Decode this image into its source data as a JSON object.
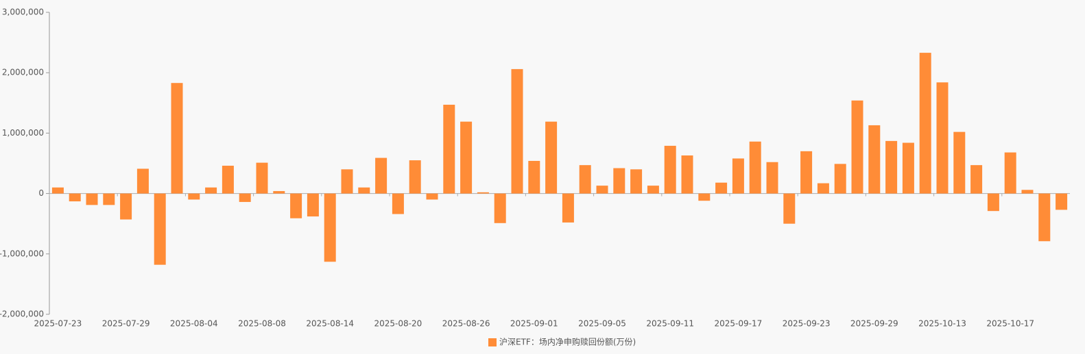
{
  "chart_data": {
    "type": "bar",
    "categories": [
      "2025-07-23",
      null,
      null,
      null,
      "2025-07-29",
      null,
      null,
      null,
      "2025-08-04",
      null,
      null,
      null,
      "2025-08-08",
      null,
      null,
      null,
      "2025-08-14",
      null,
      null,
      null,
      "2025-08-20",
      null,
      null,
      null,
      "2025-08-26",
      null,
      null,
      null,
      "2025-09-01",
      null,
      null,
      null,
      "2025-09-05",
      null,
      null,
      null,
      "2025-09-11",
      null,
      null,
      null,
      "2025-09-17",
      null,
      null,
      null,
      "2025-09-23",
      null,
      null,
      null,
      "2025-09-29",
      null,
      null,
      null,
      "2025-10-13",
      null,
      null,
      null,
      "2025-10-17",
      null,
      null,
      null
    ],
    "series": [
      {
        "name": "沪深ETF：场内净申购赎回份额(万份)",
        "color": "#ff8c37",
        "values": [
          100000,
          -130000,
          -190000,
          -190000,
          -430000,
          410000,
          -1180000,
          1830000,
          -100000,
          100000,
          460000,
          -140000,
          510000,
          40000,
          -410000,
          -380000,
          -1130000,
          400000,
          100000,
          590000,
          -340000,
          550000,
          -100000,
          1470000,
          1190000,
          20000,
          -490000,
          2060000,
          540000,
          1190000,
          -480000,
          470000,
          130000,
          420000,
          400000,
          130000,
          790000,
          630000,
          -120000,
          180000,
          580000,
          860000,
          520000,
          -500000,
          700000,
          170000,
          490000,
          1540000,
          1130000,
          870000,
          840000,
          2330000,
          1840000,
          1020000,
          470000,
          -290000,
          680000,
          60000,
          -790000,
          -270000
        ]
      }
    ],
    "ylim": [
      -2000000,
      3000000
    ],
    "yticks": [
      {
        "value": -2000000,
        "label": "-2,000,000"
      },
      {
        "value": -1000000,
        "label": "-1,000,000"
      },
      0,
      {
        "value": 1000000,
        "label": "1,000,000"
      },
      {
        "value": 2000000,
        "label": "2,000,000"
      },
      {
        "value": 3000000,
        "label": "3,000,000"
      }
    ],
    "legend": "bottom"
  }
}
